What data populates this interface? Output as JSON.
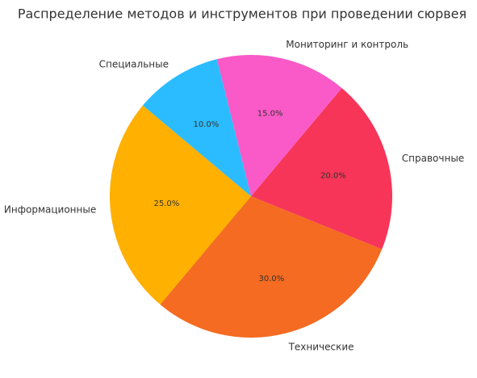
{
  "chart_data": {
    "type": "pie",
    "title": "Распределение методов и инструментов при проведении сюрвея",
    "categories": [
      "Информационные",
      "Технические",
      "Справочные",
      "Мониторинг и контроль",
      "Специальные"
    ],
    "values": [
      25,
      30,
      20,
      15,
      10
    ],
    "value_labels": [
      "25.0%",
      "30.0%",
      "20.0%",
      "15.0%",
      "10.0%"
    ],
    "colors": [
      "#ffb000",
      "#f46b21",
      "#f73558",
      "#f95ac7",
      "#2bbcff"
    ],
    "startangle": 140
  }
}
